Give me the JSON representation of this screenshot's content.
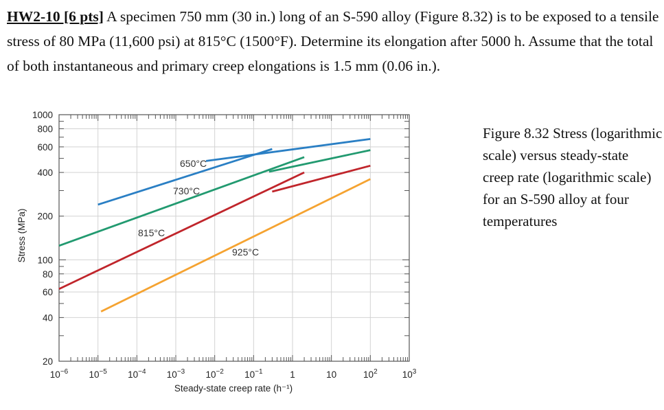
{
  "problem": {
    "label": "HW2-10 [6 pts]",
    "text": " A specimen 750 mm (30 in.) long of an S-590 alloy (Figure 8.32) is to be exposed to a tensile stress of 80 MPa (11,600 psi) at 815°C (1500°F).  Determine its elongation after 5000 h.  Assume that the total of both instantaneous and primary creep elongations is 1.5 mm (0.06 in.)."
  },
  "caption": "Figure 8.32 Stress (logarithmic scale) versus steady-state creep rate (logarithmic scale) for an S-590 alloy at four temperatures",
  "chart_data": {
    "type": "line",
    "title": "",
    "xlabel": "Steady-state creep rate (h⁻¹)",
    "ylabel": "Stress (MPa)",
    "xscale": "log",
    "yscale": "log",
    "xlim": [
      1e-06,
      1000
    ],
    "ylim": [
      20,
      1000
    ],
    "grid": true,
    "x_ticks": [
      {
        "value": 1e-06,
        "base": "10",
        "exp": "−6"
      },
      {
        "value": 1e-05,
        "base": "10",
        "exp": "−5"
      },
      {
        "value": 0.0001,
        "base": "10",
        "exp": "−4"
      },
      {
        "value": 0.001,
        "base": "10",
        "exp": "−3"
      },
      {
        "value": 0.01,
        "base": "10",
        "exp": "−2"
      },
      {
        "value": 0.1,
        "base": "10",
        "exp": "−1"
      },
      {
        "value": 1,
        "base": "1",
        "exp": ""
      },
      {
        "value": 10,
        "base": "10",
        "exp": ""
      },
      {
        "value": 100,
        "base": "10",
        "exp": "2"
      },
      {
        "value": 1000,
        "base": "10",
        "exp": "3"
      }
    ],
    "y_ticks": [
      {
        "value": 1000,
        "label": "1000"
      },
      {
        "value": 800,
        "label": "800"
      },
      {
        "value": 600,
        "label": "600"
      },
      {
        "value": 400,
        "label": "400"
      },
      {
        "value": 200,
        "label": "200"
      },
      {
        "value": 100,
        "label": "100"
      },
      {
        "value": 80,
        "label": "80"
      },
      {
        "value": 60,
        "label": "60"
      },
      {
        "value": 40,
        "label": "40"
      },
      {
        "value": 20,
        "label": "20"
      }
    ],
    "series": [
      {
        "name": "650°C",
        "color": "#2a7fc4",
        "segments": [
          {
            "x": [
              1e-05,
              0.3
            ],
            "y": [
              240,
              580
            ]
          },
          {
            "x": [
              0.006,
              100
            ],
            "y": [
              480,
              680
            ]
          }
        ]
      },
      {
        "name": "730°C",
        "color": "#229a70",
        "segments": [
          {
            "x": [
              1e-06,
              2
            ],
            "y": [
              125,
              510
            ]
          },
          {
            "x": [
              0.25,
              100
            ],
            "y": [
              405,
              570
            ]
          }
        ]
      },
      {
        "name": "815°C",
        "color": "#c0252b",
        "segments": [
          {
            "x": [
              1e-06,
              2
            ],
            "y": [
              63,
              400
            ]
          },
          {
            "x": [
              0.3,
              100
            ],
            "y": [
              295,
              445
            ]
          }
        ]
      },
      {
        "name": "925°C",
        "color": "#f5a331",
        "segments": [
          {
            "x": [
              1.2e-05,
              100
            ],
            "y": [
              44,
              360
            ]
          }
        ]
      }
    ]
  }
}
